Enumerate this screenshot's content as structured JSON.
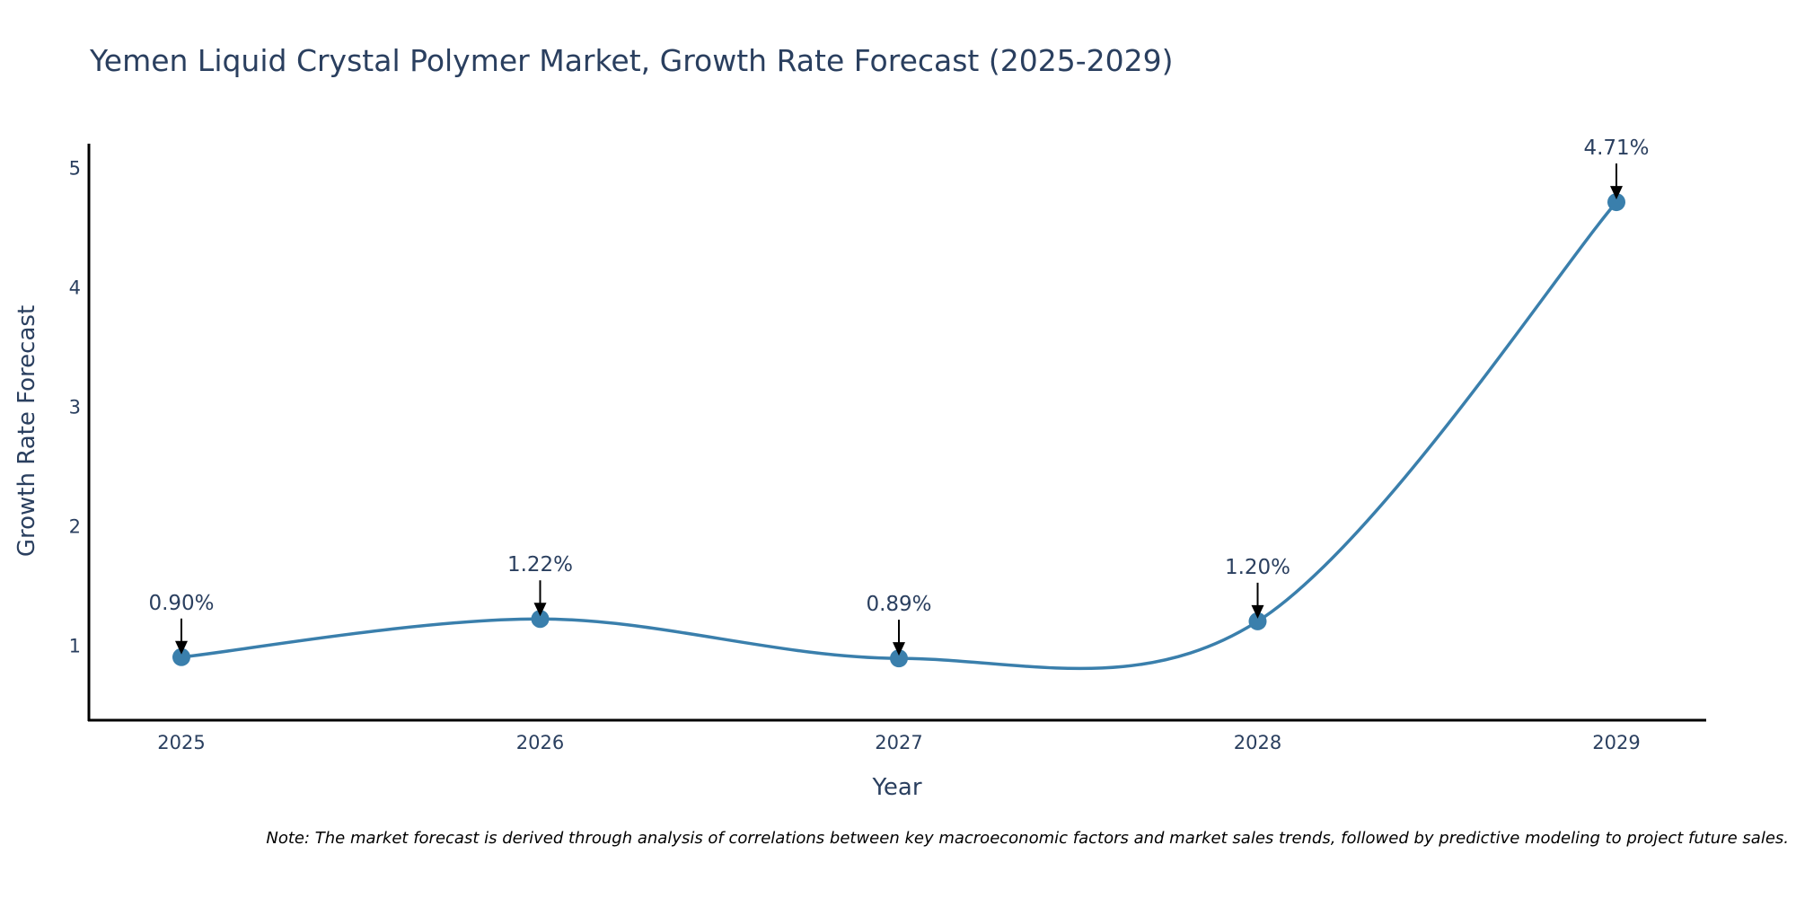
{
  "chart_data": {
    "type": "line",
    "title": "Yemen Liquid Crystal Polymer Market, Growth Rate Forecast (2025-2029)",
    "xlabel": "Year",
    "ylabel": "Growth Rate Forecast",
    "categories": [
      "2025",
      "2026",
      "2027",
      "2028",
      "2029"
    ],
    "values": [
      0.9,
      1.22,
      0.89,
      1.2,
      4.71
    ],
    "data_labels": [
      "0.90%",
      "1.22%",
      "0.89%",
      "1.20%",
      "4.71%"
    ],
    "yticks": [
      1,
      2,
      3,
      4,
      5
    ],
    "ylim": [
      0.37,
      5.2
    ],
    "line_color": "#3a7fac",
    "marker_color": "#3a7fac",
    "note": "Note: The market forecast is derived through analysis of correlations between key macroeconomic factors and market sales trends, followed by predictive modeling to project future sales."
  }
}
